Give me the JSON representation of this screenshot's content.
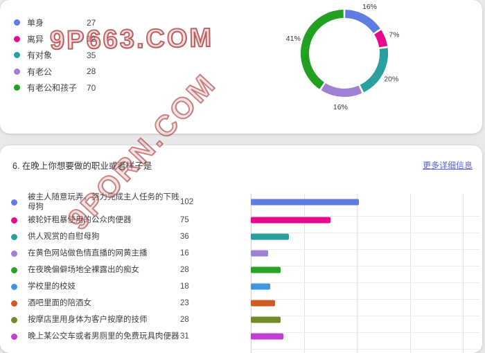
{
  "watermarks": {
    "horizontal": "9P663.COM",
    "diagonal": "9PORN.COM"
  },
  "question_section": {
    "title": "6. 在晚上你想要做的职业或者样子是",
    "more_link": "更多详细信息"
  },
  "colors": {
    "link": "#5b5fe0",
    "axis_line": "#cccccc",
    "grid_line": "#e3e3e3"
  },
  "chart_data": [
    {
      "type": "pie",
      "donut": true,
      "legend_position": "left",
      "categories": [
        "单身",
        "离异",
        "有对象",
        "有老公",
        "有老公和孩子"
      ],
      "values": [
        27,
        12,
        35,
        28,
        70
      ],
      "percent_labels": [
        "16%",
        "7%",
        "20%",
        "16%",
        "41%"
      ],
      "colors": [
        "#5e7ce2",
        "#e5098e",
        "#2b9e9e",
        "#9f80d4",
        "#22a022"
      ]
    },
    {
      "type": "bar",
      "orientation": "horizontal",
      "categories": [
        "被主人随意玩弄，努力完成主人任务的下贱母狗",
        "被轮奸粗暴使用的公众肉便器",
        "供人观赏的自慰母狗",
        "在黄色网站做色情直播的网黄主播",
        "在夜晚偏僻场地全裸露出的痴女",
        "学校里的校妓",
        "酒吧里面的陪酒女",
        "按摩店里用身体为客户按摩的技师",
        "晚上某公交车或者男厕里的免费玩具肉便器"
      ],
      "values": [
        102,
        75,
        36,
        16,
        28,
        18,
        23,
        28,
        31
      ],
      "colors": [
        "#5e7ce2",
        "#e5098e",
        "#2b9e9e",
        "#9f80d4",
        "#2aa22a",
        "#3e97e0",
        "#cf5b24",
        "#6f8c28",
        "#bf3fd0"
      ],
      "xlim": [
        0,
        200
      ],
      "grid_step": 50,
      "grid": true
    }
  ]
}
